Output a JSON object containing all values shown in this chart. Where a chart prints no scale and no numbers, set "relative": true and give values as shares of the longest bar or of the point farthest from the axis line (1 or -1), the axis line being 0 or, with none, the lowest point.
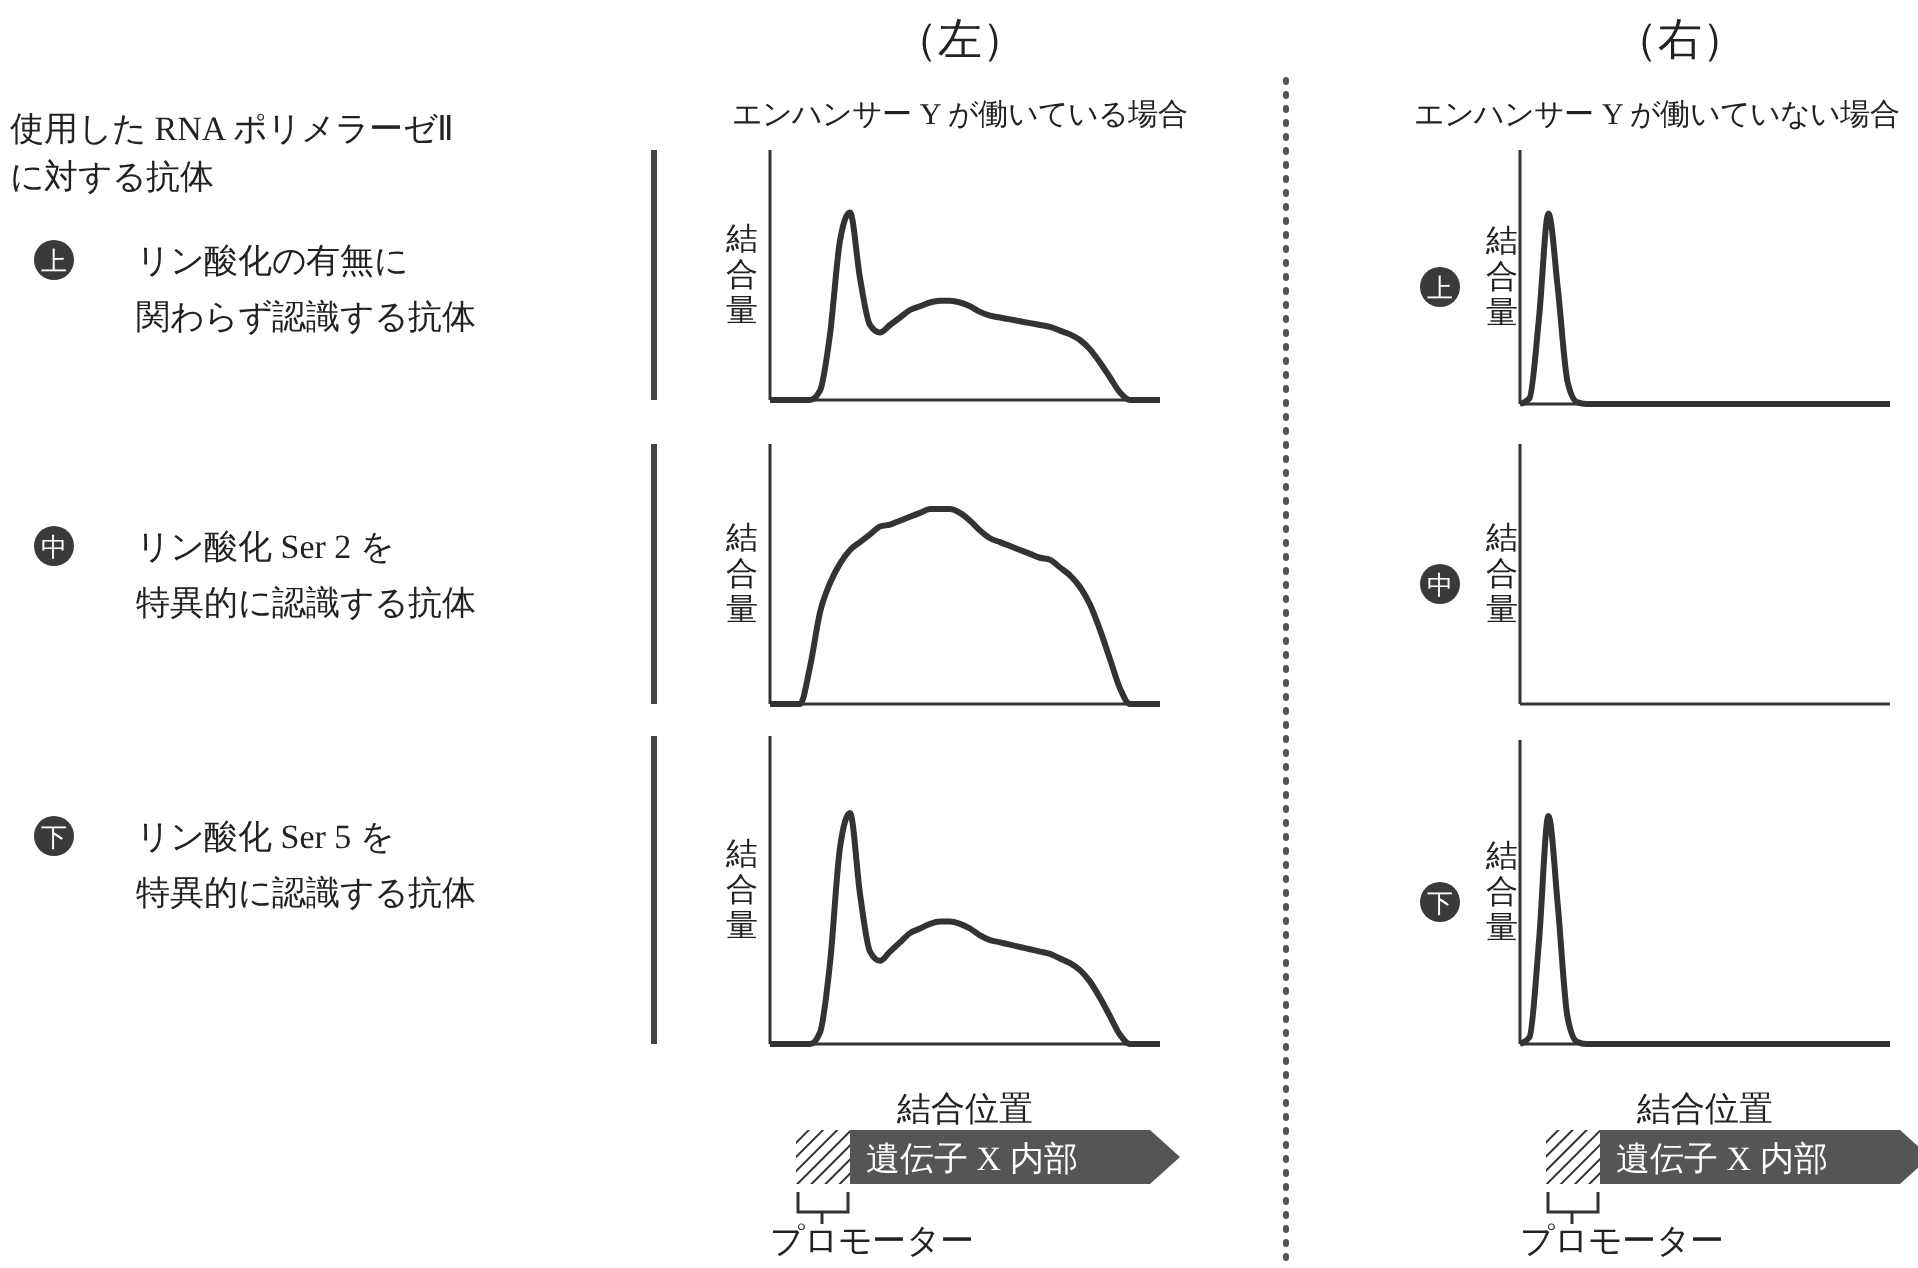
{
  "chart_data": [
    {
      "type": "other",
      "title": "使用した RNA ポリメラーゼⅡ",
      "subtitle": "に対する抗体",
      "annotations": [
        "上",
        "リン酸化の有無に",
        "関わらず認識する抗体",
        "中",
        "リン酸化 Ser 2 を",
        "特異的に認識する抗体",
        "下",
        "リン酸化 Ser 5 を",
        "特異的に認識する抗体"
      ]
    },
    {
      "type": "line",
      "relative": true,
      "title": "（左）",
      "subtitle": "エンハンサー Y が働いている場合",
      "ylabel": "結合量",
      "categories": [
        null,
        null,
        null,
        null,
        null,
        null,
        null,
        null,
        null,
        null,
        null,
        null,
        null,
        null,
        null,
        null,
        null,
        null,
        null,
        null,
        null,
        null,
        null,
        null,
        null,
        null,
        null,
        null,
        null,
        null,
        null,
        null,
        null,
        null,
        null,
        null,
        null,
        null,
        null,
        null
      ],
      "series": [
        {
          "color": "#333333",
          "values": [
            0,
            0,
            0,
            0,
            0,
            0.05,
            0.35,
            0.85,
            1,
            0.65,
            0.4,
            0.36,
            0.4,
            0.44,
            0.48,
            0.5,
            0.52,
            0.53,
            0.53,
            0.52,
            0.5,
            0.47,
            0.45,
            0.44,
            0.43,
            0.42,
            0.41,
            0.4,
            0.39,
            0.37,
            0.35,
            0.32,
            0.27,
            0.2,
            0.12,
            0.04,
            0,
            0,
            0,
            0
          ]
        }
      ]
    },
    {
      "type": "line",
      "relative": true,
      "ylabel": "結合量",
      "categories": [
        null,
        null,
        null,
        null,
        null,
        null,
        null,
        null,
        null,
        null,
        null,
        null,
        null,
        null,
        null,
        null,
        null,
        null,
        null,
        null,
        null,
        null,
        null,
        null,
        null,
        null,
        null,
        null,
        null,
        null,
        null,
        null,
        null,
        null,
        null,
        null,
        null,
        null,
        null,
        null
      ],
      "series": [
        {
          "color": "#333333",
          "values": [
            0,
            0,
            0,
            0,
            0.19,
            0.47,
            0.62,
            0.72,
            0.79,
            0.83,
            0.87,
            0.91,
            0.92,
            0.94,
            0.96,
            0.98,
            1,
            1,
            1,
            0.98,
            0.94,
            0.89,
            0.85,
            0.83,
            0.81,
            0.79,
            0.77,
            0.75,
            0.74,
            0.7,
            0.66,
            0.6,
            0.51,
            0.38,
            0.23,
            0.08,
            0,
            0,
            0,
            0
          ]
        }
      ]
    },
    {
      "type": "line",
      "relative": true,
      "ylabel": "結合量",
      "xlabel": "結合位置",
      "annotations": [
        "遺伝子 X 内部",
        "プロモーター"
      ],
      "categories": [
        null,
        null,
        null,
        null,
        null,
        null,
        null,
        null,
        null,
        null,
        null,
        null,
        null,
        null,
        null,
        null,
        null,
        null,
        null,
        null,
        null,
        null,
        null,
        null,
        null,
        null,
        null,
        null,
        null,
        null,
        null,
        null,
        null,
        null,
        null,
        null,
        null,
        null,
        null,
        null
      ],
      "series": [
        {
          "color": "#333333",
          "values": [
            0,
            0,
            0,
            0,
            0,
            0.05,
            0.35,
            0.85,
            1,
            0.65,
            0.4,
            0.36,
            0.4,
            0.44,
            0.48,
            0.5,
            0.52,
            0.53,
            0.53,
            0.52,
            0.5,
            0.47,
            0.45,
            0.44,
            0.43,
            0.42,
            0.41,
            0.4,
            0.39,
            0.37,
            0.35,
            0.32,
            0.27,
            0.2,
            0.12,
            0.04,
            0,
            0,
            0,
            0
          ]
        }
      ]
    },
    {
      "type": "line",
      "relative": true,
      "title": "（右）",
      "subtitle": "エンハンサー Y が働いていない場合",
      "ylabel": "結合量",
      "annotations": [
        "上"
      ],
      "categories": [
        null,
        null,
        null,
        null,
        null,
        null,
        null,
        null,
        null,
        null,
        null,
        null,
        null,
        null,
        null,
        null,
        null,
        null,
        null,
        null,
        null,
        null,
        null,
        null,
        null,
        null,
        null,
        null,
        null,
        null,
        null,
        null,
        null,
        null,
        null,
        null,
        null,
        null,
        null,
        null
      ],
      "series": [
        {
          "color": "#333333",
          "values": [
            0,
            0.03,
            0.45,
            1,
            0.6,
            0.12,
            0.01,
            0,
            0,
            0,
            0,
            0,
            0,
            0,
            0,
            0,
            0,
            0,
            0,
            0,
            0,
            0,
            0,
            0,
            0,
            0,
            0,
            0,
            0,
            0,
            0,
            0,
            0,
            0,
            0,
            0,
            0,
            0,
            0,
            0
          ]
        }
      ]
    },
    {
      "type": "other",
      "ylabel": "結合量",
      "annotations": [
        "中"
      ]
    },
    {
      "type": "line",
      "relative": true,
      "ylabel": "結合量",
      "xlabel": "結合位置",
      "annotations": [
        "下",
        "遺伝子 X 内部",
        "プロモーター"
      ],
      "categories": [
        null,
        null,
        null,
        null,
        null,
        null,
        null,
        null,
        null,
        null,
        null,
        null,
        null,
        null,
        null,
        null,
        null,
        null,
        null,
        null,
        null,
        null,
        null,
        null,
        null,
        null,
        null,
        null,
        null,
        null,
        null,
        null,
        null,
        null,
        null,
        null,
        null,
        null,
        null,
        null
      ],
      "series": [
        {
          "color": "#333333",
          "values": [
            0,
            0.03,
            0.45,
            1,
            0.6,
            0.12,
            0.01,
            0,
            0,
            0,
            0,
            0,
            0,
            0,
            0,
            0,
            0,
            0,
            0,
            0,
            0,
            0,
            0,
            0,
            0,
            0,
            0,
            0,
            0,
            0,
            0,
            0,
            0,
            0,
            0,
            0,
            0,
            0,
            0,
            0
          ]
        }
      ]
    }
  ]
}
